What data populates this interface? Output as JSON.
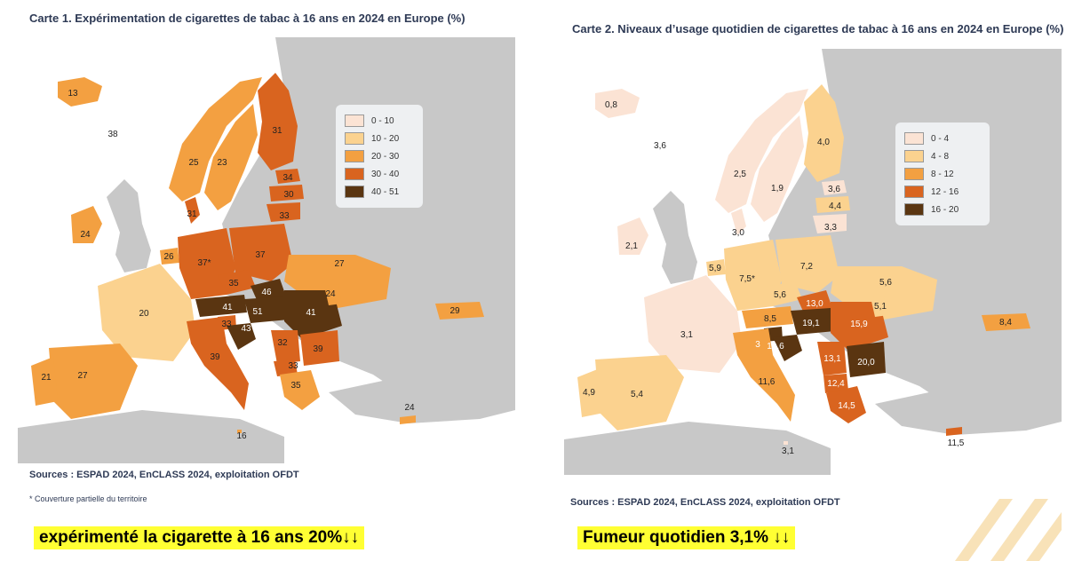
{
  "map1": {
    "title": "Carte 1. Expérimentation de cigarettes de tabac à 16 ans en 2024 en Europe (%)",
    "legend": [
      {
        "label": "0 - 10",
        "color": "#fbe3d4"
      },
      {
        "label": "10 - 20",
        "color": "#fbd28f"
      },
      {
        "label": "20 - 30",
        "color": "#f3a041"
      },
      {
        "label": "30 - 40",
        "color": "#d9641f"
      },
      {
        "label": "40 - 51",
        "color": "#5a3511"
      }
    ],
    "values": {
      "iceland": "13",
      "faroe": "38",
      "norway": "25",
      "sweden": "23",
      "finland": "31",
      "estonia": "34",
      "latvia": "30",
      "lithuania": "33",
      "denmark": "31",
      "ireland": "24",
      "belgium": "26",
      "germany": "37*",
      "poland": "37",
      "ukraine": "27",
      "czechia": "35",
      "slovakia": "46",
      "austria": "41",
      "hungary": "51",
      "romania": "41",
      "moldova": "24",
      "slovenia": "33",
      "croatia": "43",
      "france": "20",
      "georgia": "29",
      "italy": "39",
      "serbia": "32",
      "bulgaria": "39",
      "montenegro": "33",
      "greece": "35",
      "spain": "27",
      "portugal": "21",
      "malta": "16",
      "cyprus": "24"
    },
    "source": "Sources : ESPAD 2024, EnCLASS 2024, exploitation OFDT",
    "note": "* Couverture partielle du territoire",
    "caption": "expérimenté la cigarette à 16 ans 20%↓↓"
  },
  "map2": {
    "title": "Carte 2. Niveaux d’usage quotidien de cigarettes de tabac à 16 ans en 2024 en Europe (%)",
    "legend": [
      {
        "label": "0 - 4",
        "color": "#fbe3d4"
      },
      {
        "label": "4 - 8",
        "color": "#fbd28f"
      },
      {
        "label": "8 - 12",
        "color": "#f3a041"
      },
      {
        "label": "12 - 16",
        "color": "#d9641f"
      },
      {
        "label": "16 - 20",
        "color": "#5a3511"
      }
    ],
    "values": {
      "iceland": "0,8",
      "faroe": "3,6",
      "norway": "2,5",
      "sweden": "1,9",
      "finland": "4,0",
      "estonia": "3,6",
      "latvia": "4,4",
      "lithuania": "3,3",
      "denmark": "3,0",
      "ireland": "2,1",
      "belgium": "5,9",
      "germany": "7,5*",
      "poland": "7,2",
      "ukraine": "5,6",
      "czechia": "5,6",
      "slovakia": "13,0",
      "moldova": "5,1",
      "austria": "8,5",
      "hungary": "19,1",
      "romania": "15,9",
      "slovenia": "19,6",
      "croatia": "3",
      "france": "3,1",
      "georgia": "8,4",
      "italy": "11,6",
      "serbia": "13,1",
      "bulgaria": "20,0",
      "north_macedonia": "12,4",
      "greece": "14,5",
      "portugal": "4,9",
      "spain": "5,4",
      "malta": "3,1",
      "cyprus": "11,5"
    },
    "source": "Sources : ESPAD 2024, EnCLASS 2024, exploitation OFDT",
    "caption": "Fumeur quotidien 3,1% ↓↓"
  },
  "colors": {
    "land_other": "#c8c8c8",
    "sea": "#ffffff",
    "border": "#ffffff",
    "caption_bg": "#ffff33",
    "title": "#2e3a55"
  }
}
